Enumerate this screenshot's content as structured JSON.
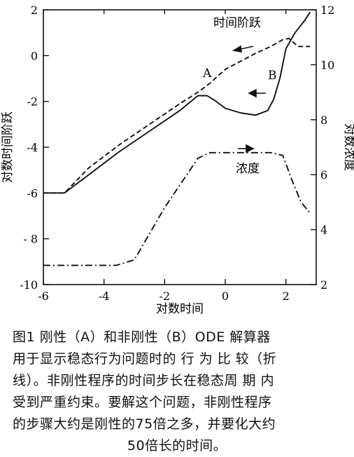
{
  "chart_data": {
    "type": "line",
    "xlabel": "对数时间",
    "ylabel_left": "对数时间阶跃",
    "ylabel_right": "对数浓度",
    "xlim": [
      -6,
      3
    ],
    "ylim_left": [
      -10,
      2
    ],
    "ylim_right": [
      2,
      12
    ],
    "xticks": [
      -6,
      -4,
      -2,
      0,
      2
    ],
    "xtick_labels": [
      "-6",
      "-4",
      "-2",
      "0",
      "2"
    ],
    "yticks_left": [
      -10,
      -8,
      -6,
      -4,
      -2,
      0,
      2
    ],
    "ytick_labels_left": [
      "-10",
      "- 8",
      "-6",
      "-4",
      "-2",
      "0",
      "2"
    ],
    "yticks_right": [
      2,
      4,
      6,
      8,
      10,
      12
    ],
    "ytick_labels_right": [
      "2",
      "4",
      "6",
      "8",
      "10",
      "12"
    ],
    "annotations": {
      "time_step": "时间阶跃",
      "concentration": "浓度",
      "label_a": "A",
      "label_b": "B"
    },
    "series": [
      {
        "label": "A",
        "axis": "left",
        "style": "dashed",
        "x": [
          -6.0,
          -5.3,
          -4.5,
          -3.5,
          -2.5,
          -1.5,
          -0.9,
          -0.5,
          0.0,
          0.5,
          1.0,
          1.5,
          1.9,
          2.1,
          2.4,
          2.8
        ],
        "y": [
          -6.0,
          -6.0,
          -4.9,
          -3.9,
          -3.0,
          -2.1,
          -1.6,
          -1.2,
          -0.6,
          -0.25,
          0.1,
          0.4,
          0.7,
          0.75,
          0.4,
          0.4
        ]
      },
      {
        "label": "B",
        "axis": "left",
        "style": "solid",
        "x": [
          -6.0,
          -5.3,
          -4.5,
          -3.5,
          -2.5,
          -1.5,
          -0.9,
          -0.6,
          -0.3,
          0.0,
          0.5,
          1.0,
          1.4,
          1.6,
          1.8,
          2.0,
          2.3,
          2.6,
          2.8
        ],
        "y": [
          -6.0,
          -6.0,
          -5.2,
          -4.2,
          -3.3,
          -2.4,
          -1.75,
          -1.75,
          -2.0,
          -2.3,
          -2.5,
          -2.6,
          -2.4,
          -1.9,
          -1.0,
          0.3,
          1.0,
          1.5,
          1.9
        ]
      },
      {
        "label": "浓度",
        "axis": "right",
        "style": "dash-dot",
        "x": [
          -6.0,
          -3.6,
          -3.0,
          -2.0,
          -0.9,
          -0.5,
          0.0,
          1.0,
          1.5,
          1.9,
          2.2,
          2.5,
          2.8
        ],
        "y": [
          2.7,
          2.7,
          2.9,
          4.8,
          6.6,
          6.8,
          6.8,
          6.8,
          6.8,
          6.7,
          5.8,
          5.0,
          4.6
        ]
      }
    ]
  },
  "caption": {
    "lines": [
      "图1  刚性（A）和非刚性（B）ODE 解算器",
      "用于显示稳态行为问题时的 行 为 比 较（折",
      "线）。非刚性程序的时间步长在稳态周 期 内",
      "受到严重约束。要解这个问题，非刚性程序",
      "的步骤大约是刚性的75倍之多，并要化大约"
    ],
    "last_line": "50倍长的时间。"
  }
}
